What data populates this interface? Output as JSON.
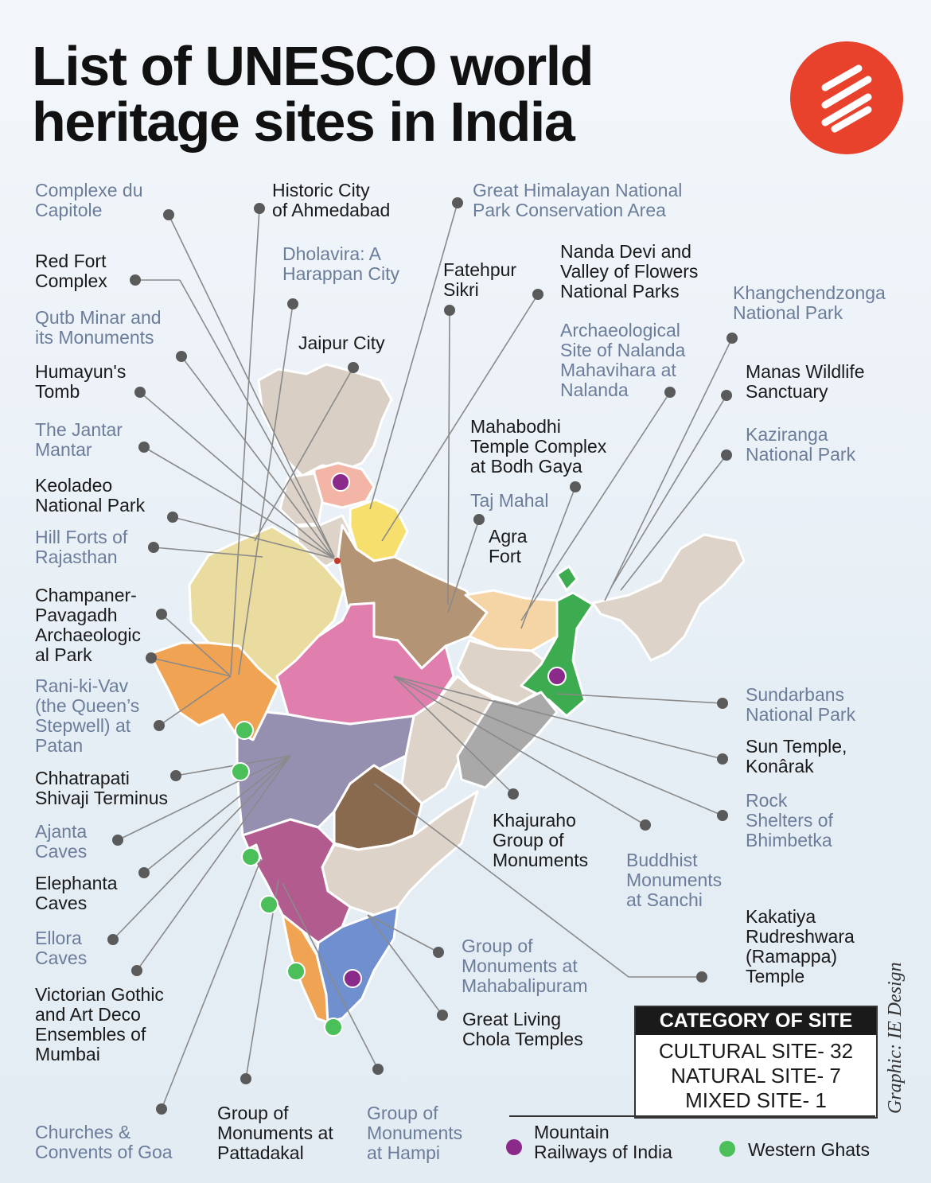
{
  "title": {
    "line1": "List of UNESCO world",
    "line2": "heritage sites in India"
  },
  "logo": {
    "icon": "indian-express-logo-icon",
    "color": "#e8412c"
  },
  "colors": {
    "cultural_label": "#1a1a1a",
    "alt_label": "#6b7d9a",
    "mountain_railways_dot": "#8b2a8b",
    "western_ghats_dot": "#4bbf5a"
  },
  "sites": [
    {
      "id": "complexe-du-capitole",
      "label": "Complexe du\nCapitole",
      "style": "blue"
    },
    {
      "id": "historic-city-ahmedabad",
      "label": "Historic City\nof Ahmedabad",
      "style": "dark"
    },
    {
      "id": "great-himalayan",
      "label": "Great Himalayan National\nPark Conservation Area",
      "style": "blue"
    },
    {
      "id": "red-fort",
      "label": "Red Fort\nComplex",
      "style": "dark"
    },
    {
      "id": "dholavira",
      "label": "Dholavira: A\nHarappan City",
      "style": "blue"
    },
    {
      "id": "fatehpur-sikri",
      "label": "Fatehpur\nSikri",
      "style": "dark"
    },
    {
      "id": "nanda-devi",
      "label": "Nanda Devi and\nValley of Flowers\nNational Parks",
      "style": "dark"
    },
    {
      "id": "khangchendzonga",
      "label": "Khangchendzonga\nNational Park",
      "style": "blue"
    },
    {
      "id": "qutb-minar",
      "label": "Qutb Minar and\nits Monuments",
      "style": "blue"
    },
    {
      "id": "jaipur-city",
      "label": "Jaipur City",
      "style": "dark"
    },
    {
      "id": "nalanda",
      "label": "Archaeological\nSite of Nalanda\nMahavihara at\nNalanda",
      "style": "blue"
    },
    {
      "id": "humayuns-tomb",
      "label": "Humayun's\nTomb",
      "style": "dark"
    },
    {
      "id": "manas",
      "label": "Manas Wildlife\nSanctuary",
      "style": "dark"
    },
    {
      "id": "jantar-mantar",
      "label": "The Jantar\nMantar",
      "style": "blue"
    },
    {
      "id": "mahabodhi",
      "label": "Mahabodhi\nTemple Complex\nat Bodh Gaya",
      "style": "dark"
    },
    {
      "id": "kaziranga",
      "label": "Kaziranga\nNational Park",
      "style": "blue"
    },
    {
      "id": "keoladeo",
      "label": "Keoladeo\nNational Park",
      "style": "dark"
    },
    {
      "id": "taj-mahal",
      "label": "Taj Mahal",
      "style": "blue"
    },
    {
      "id": "hill-forts",
      "label": "Hill Forts of\nRajasthan",
      "style": "blue"
    },
    {
      "id": "agra-fort",
      "label": "Agra\nFort",
      "style": "dark"
    },
    {
      "id": "champaner",
      "label": "Champaner-\nPavagadh\nArchaeologic\nal Park",
      "style": "dark"
    },
    {
      "id": "rani-ki-vav",
      "label": "Rani-ki-Vav\n(the Queen’s\nStepwell) at\nPatan",
      "style": "blue"
    },
    {
      "id": "sundarbans",
      "label": "Sundarbans\nNational Park",
      "style": "blue"
    },
    {
      "id": "sun-temple",
      "label": "Sun Temple,\nKonârak",
      "style": "dark"
    },
    {
      "id": "chhatrapati",
      "label": "Chhatrapati\nShivaji Terminus",
      "style": "dark"
    },
    {
      "id": "bhimbetka",
      "label": "Rock\nShelters of\nBhimbetka",
      "style": "blue"
    },
    {
      "id": "ajanta",
      "label": "Ajanta\nCaves",
      "style": "blue"
    },
    {
      "id": "khajuraho",
      "label": "Khajuraho\nGroup of\nMonuments",
      "style": "dark"
    },
    {
      "id": "sanchi",
      "label": "Buddhist\nMonuments\nat Sanchi",
      "style": "blue"
    },
    {
      "id": "elephanta",
      "label": "Elephanta\nCaves",
      "style": "dark"
    },
    {
      "id": "kakatiya",
      "label": "Kakatiya\nRudreshwara\n(Ramappa)\nTemple",
      "style": "dark"
    },
    {
      "id": "ellora",
      "label": "Ellora\nCaves",
      "style": "blue"
    },
    {
      "id": "mahabalipuram",
      "label": "Group of\nMonuments at\nMahabalipuram",
      "style": "blue"
    },
    {
      "id": "victorian-gothic",
      "label": "Victorian Gothic\nand Art Deco\nEnsembles of\nMumbai",
      "style": "dark"
    },
    {
      "id": "chola",
      "label": "Great Living\nChola Temples",
      "style": "dark"
    },
    {
      "id": "goa",
      "label": "Churches &\nConvents of Goa",
      "style": "blue"
    },
    {
      "id": "pattadakal",
      "label": "Group of\nMonuments at\nPattadakal",
      "style": "dark"
    },
    {
      "id": "hampi",
      "label": "Group of\nMonuments\nat Hampi",
      "style": "blue"
    }
  ],
  "legend": {
    "heading": "CATEGORY OF SITE",
    "cultural": "CULTURAL SITE- 32",
    "natural": "NATURAL SITE- 7",
    "mixed": "MIXED SITE- 1"
  },
  "key": {
    "mountain_railways": "Mountain\nRailways of India",
    "western_ghats": "Western Ghats"
  },
  "credit": "Graphic: IE Design"
}
